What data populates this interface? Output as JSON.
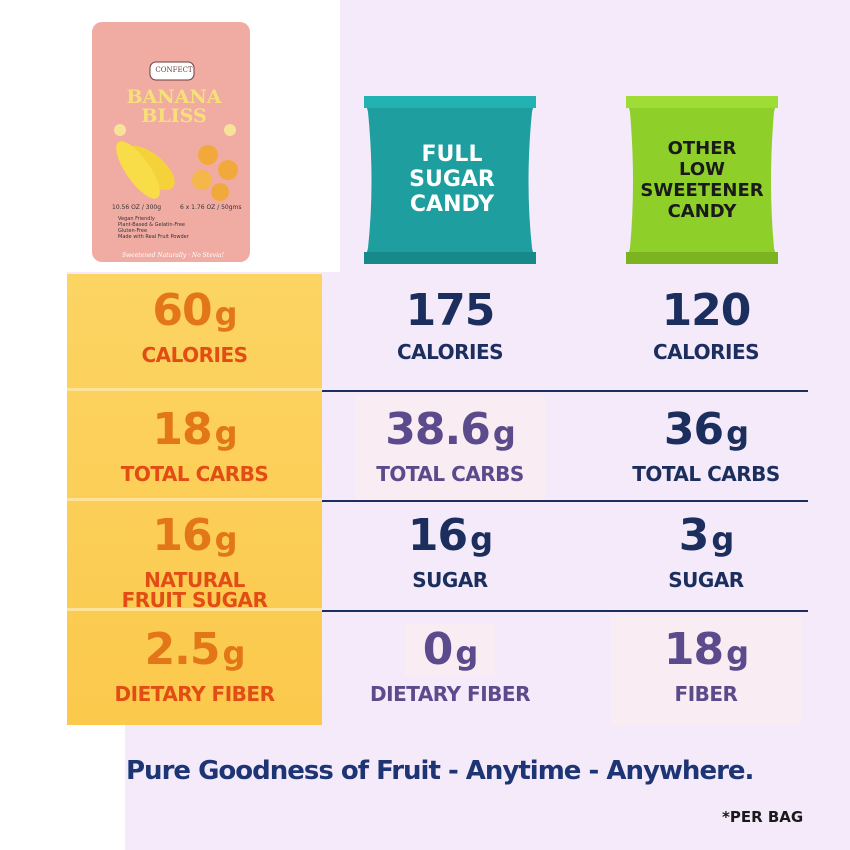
{
  "products": [
    {
      "brand": "CONFECT",
      "name": "BANANA BLISS",
      "size": "10.56 OZ / 300g",
      "pack": "6 x 1.76 OZ / 50gms",
      "features": [
        "Vegan Friendly",
        "Plant-Based & Gelatin-Free",
        "Gluten-Free",
        "Made with Real Fruit Powder"
      ],
      "tagline": "Sweetened Naturally · No Stevia!"
    },
    {
      "name": "FULL SUGAR CANDY"
    },
    {
      "name": "OTHER LOW SWEETENER CANDY"
    }
  ],
  "rows": [
    [
      {
        "amount": "60",
        "unit": "g",
        "label": "CALORIES"
      },
      {
        "amount": "175",
        "label": "CALORIES"
      },
      {
        "amount": "120",
        "label": "CALORIES"
      }
    ],
    [
      {
        "amount": "18",
        "unit": "g",
        "label": "TOTAL CARBS"
      },
      {
        "amount": "38.6",
        "unit": "g",
        "label": "TOTAL CARBS"
      },
      {
        "amount": "36",
        "unit": "g",
        "label": "TOTAL CARBS"
      }
    ],
    [
      {
        "amount": "16",
        "unit": "g",
        "label": "NATURAL FRUIT SUGAR"
      },
      {
        "amount": "16",
        "unit": "g",
        "label": "SUGAR"
      },
      {
        "amount": "3",
        "unit": "g",
        "label": "SUGAR"
      }
    ],
    [
      {
        "amount": "2.5",
        "unit": "g",
        "label": "DIETARY FIBER"
      },
      {
        "amount": "0",
        "unit": "g",
        "label": "DIETARY FIBER"
      },
      {
        "amount": "18",
        "unit": "g",
        "label": "FIBER"
      }
    ]
  ],
  "slogan": "Pure Goodness of Fruit - Anytime - Anywhere.",
  "footnote": "*PER BAG"
}
